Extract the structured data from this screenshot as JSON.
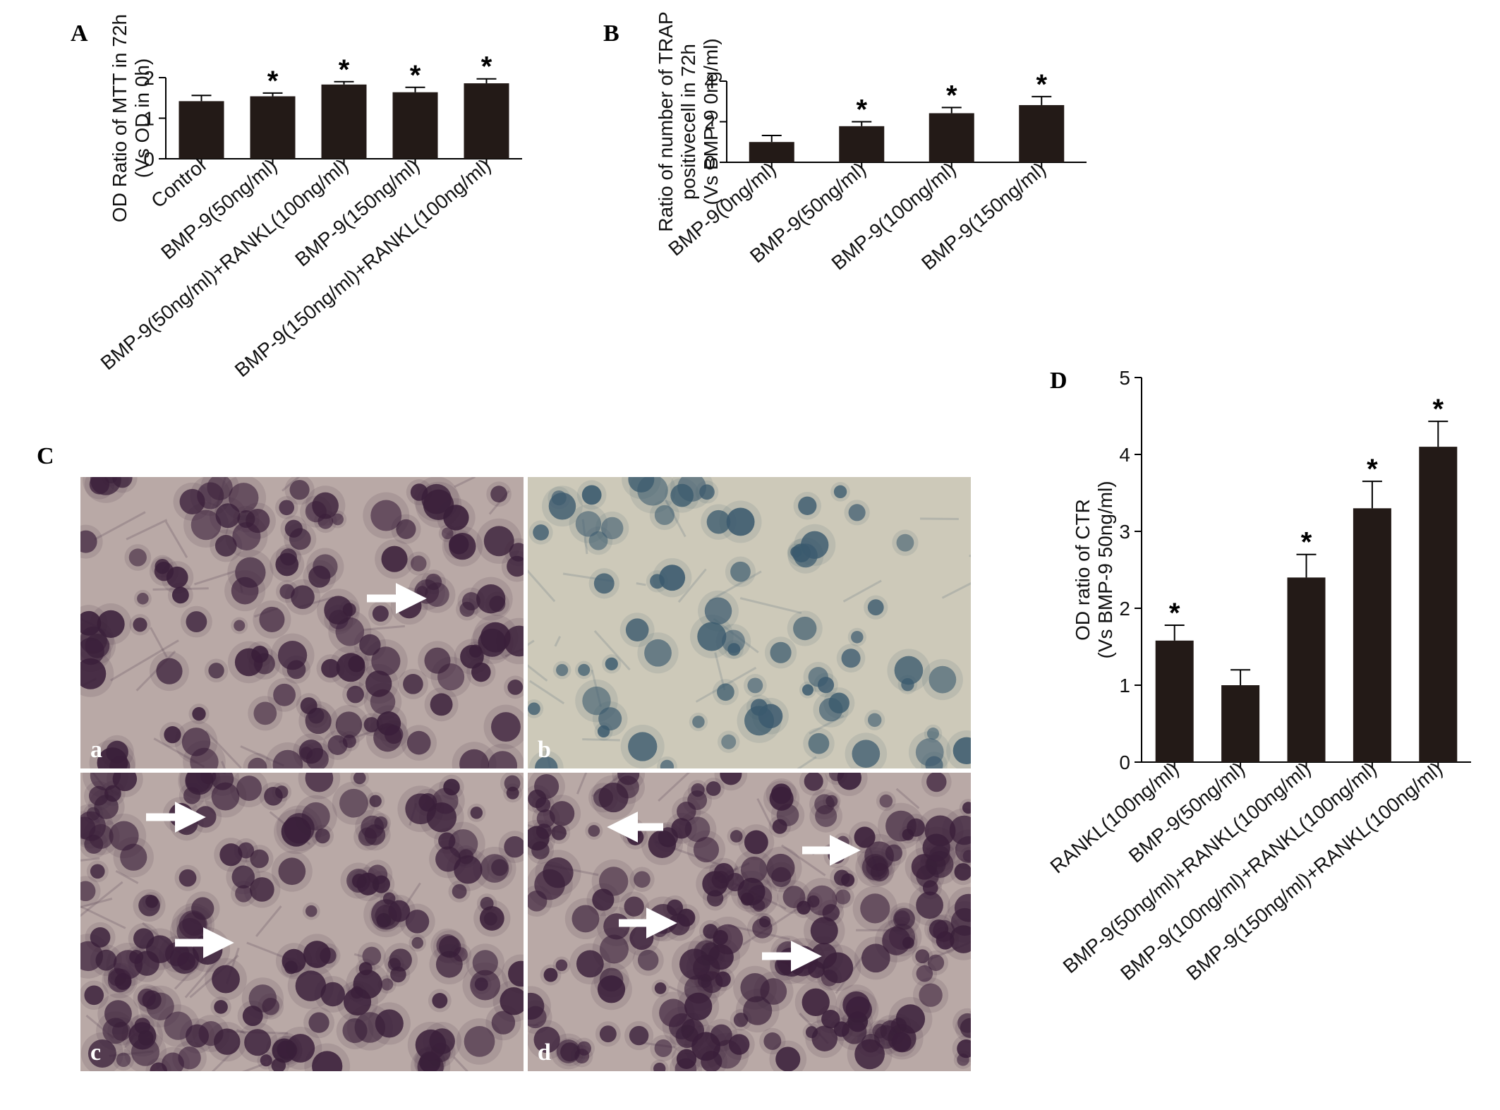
{
  "figure": {
    "panel_letters": [
      "A",
      "B",
      "C",
      "D"
    ],
    "micrograph_labels": [
      "a",
      "b",
      "c",
      "d"
    ]
  },
  "colors": {
    "bar": "#231a17",
    "axis": "#000000",
    "micro_bg_purple": "#b9a9a6",
    "micro_bg_blue": "#cdc9b9",
    "cell_purple": "#3a1f3a",
    "cell_blue": "#3b5a6e",
    "arrow": "#ffffff"
  },
  "chart_data": [
    {
      "id": "A",
      "type": "bar",
      "ylabel_lines": [
        "OD Ratio of MTT in 72h",
        "(Vs OD in 0h)"
      ],
      "categories": [
        "Control",
        "BMP-9(50ng/ml)",
        "BMP-9(50ng/ml)+RANKL(100ng/ml)",
        "BMP-9(150ng/ml)",
        "BMP-9(150ng/ml)+RANKL(100ng/ml)"
      ],
      "values": [
        1.42,
        1.54,
        1.83,
        1.64,
        1.86
      ],
      "errors": [
        0.14,
        0.08,
        0.07,
        0.12,
        0.11
      ],
      "significance": [
        "",
        "*",
        "*",
        "*",
        "*"
      ],
      "ylim": [
        0,
        2
      ],
      "yticks": [
        "0",
        "1",
        "2"
      ]
    },
    {
      "id": "B",
      "type": "bar",
      "ylabel_lines": [
        "Ratio of number of TRAP",
        "positivecell in 72h",
        "(Vs BMP-9 0ng/ml)"
      ],
      "categories": [
        "BMP-9(0ng/ml)",
        "BMP-9(50ng/ml)",
        "BMP-9(100ng/ml)",
        "BMP-9(150ng/ml)"
      ],
      "values": [
        1.0,
        1.78,
        2.42,
        2.82
      ],
      "errors": [
        0.32,
        0.22,
        0.28,
        0.42
      ],
      "significance": [
        "",
        "*",
        "*",
        "*"
      ],
      "ylim": [
        0,
        4
      ],
      "yticks": [
        "0",
        "2",
        "4"
      ]
    },
    {
      "id": "D",
      "type": "bar",
      "ylabel_lines": [
        "OD ratio of CTR",
        "(Vs BMP-9 50ng/ml)"
      ],
      "categories": [
        "RANKL(100ng/ml)",
        "BMP-9(50ng/ml)",
        "BMP-9(50ng/ml)+RANKL(100ng/ml)",
        "BMP-9(100ng/ml)+RANKL(100ng/ml)",
        "BMP-9(150ng/ml)+RANKL(100ng/ml)"
      ],
      "values": [
        1.58,
        1.0,
        2.4,
        3.3,
        4.1
      ],
      "errors": [
        0.2,
        0.2,
        0.3,
        0.35,
        0.33
      ],
      "significance": [
        "*",
        "",
        "*",
        "*",
        "*"
      ],
      "ylim": [
        0,
        5
      ],
      "yticks": [
        "0",
        "1",
        "2",
        "3",
        "4",
        "5"
      ]
    }
  ]
}
